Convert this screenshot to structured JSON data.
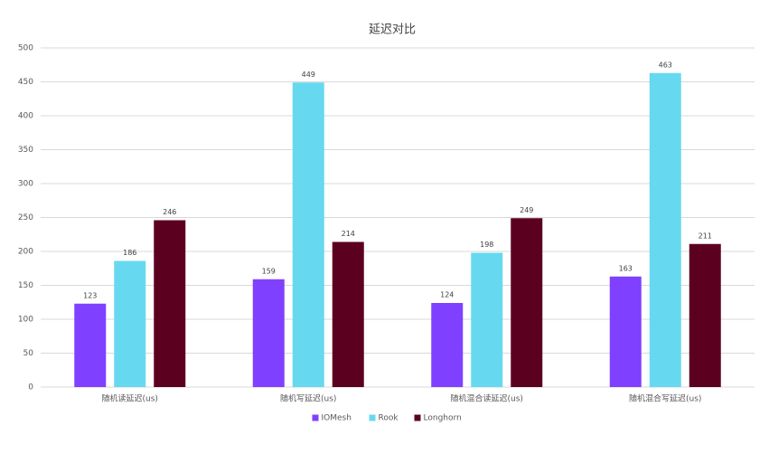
{
  "chart_data": {
    "type": "bar",
    "title": "延迟对比",
    "categories": [
      "随机读延迟(us)",
      "随机写延迟(us)",
      "随机混合读延迟(us)",
      "随机混合写延迟(us)"
    ],
    "series": [
      {
        "name": "IOMesh",
        "color": "#8040ff",
        "values": [
          123,
          159,
          124,
          163
        ]
      },
      {
        "name": "Rook",
        "color": "#66d9f0",
        "values": [
          186,
          449,
          198,
          463
        ]
      },
      {
        "name": "Longhorn",
        "color": "#5c0020",
        "values": [
          246,
          214,
          249,
          211
        ]
      }
    ],
    "ylim": [
      0,
      500
    ],
    "yticks": [
      0,
      50,
      100,
      150,
      200,
      250,
      300,
      350,
      400,
      450,
      500
    ],
    "grid": true,
    "legend": "bottom"
  }
}
